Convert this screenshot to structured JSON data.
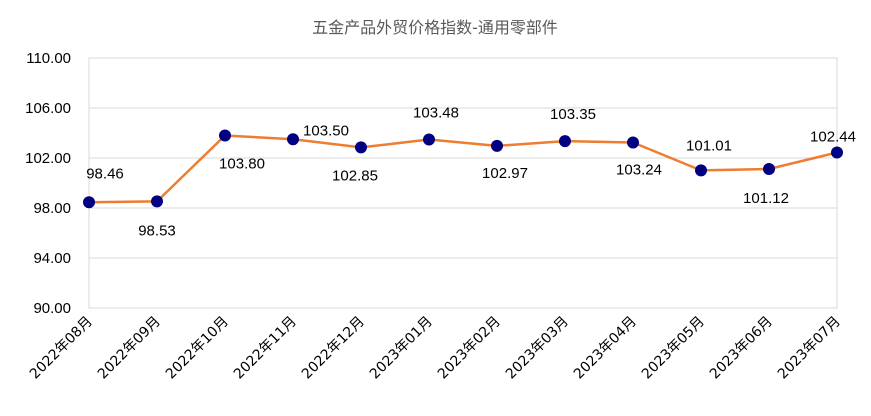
{
  "chart_data": {
    "type": "line",
    "title": "五金产品外贸价格指数-通用零部件",
    "xlabel": "",
    "ylabel": "",
    "categories": [
      "2022年08月",
      "2022年09月",
      "2022年10月",
      "2022年11月",
      "2022年12月",
      "2023年01月",
      "2023年02月",
      "2023年03月",
      "2023年04月",
      "2023年05月",
      "2023年06月",
      "2023年07月"
    ],
    "series": [
      {
        "values": [
          98.46,
          98.53,
          103.8,
          103.5,
          102.85,
          103.48,
          102.97,
          103.35,
          103.24,
          101.01,
          101.12,
          102.44
        ]
      }
    ],
    "ylim": [
      90,
      110
    ],
    "yticks": [
      "90.00",
      "94.00",
      "98.00",
      "102.00",
      "106.00",
      "110.00"
    ],
    "data_labels": [
      "98.46",
      "98.53",
      "103.80",
      "103.50",
      "102.85",
      "103.48",
      "102.97",
      "103.35",
      "103.24",
      "101.01",
      "101.12",
      "102.44"
    ],
    "grid": "horizontal",
    "legend": "none",
    "colors": {
      "line": "#ED7D31",
      "marker": "#000080",
      "grid": "#D9D9D9"
    }
  }
}
